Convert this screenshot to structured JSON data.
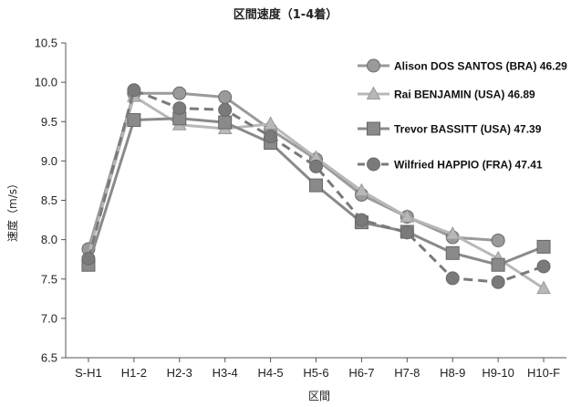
{
  "chart_data": {
    "type": "line",
    "title": "区間速度（1-4着）",
    "xlabel": "区間",
    "ylabel": "速度（m/s）",
    "ylim": [
      6.5,
      10.5
    ],
    "yticks": [
      "6.5",
      "7.0",
      "7.5",
      "8.0",
      "8.5",
      "9.0",
      "9.5",
      "10.0",
      "10.5"
    ],
    "categories": [
      "S-H1",
      "H1-2",
      "H2-3",
      "H3-4",
      "H4-5",
      "H5-6",
      "H6-7",
      "H7-8",
      "H8-9",
      "H9-10",
      "H10-F"
    ],
    "grid": false,
    "legend_position": "top-right",
    "series": [
      {
        "name": "Alison DOS SANTOS (BRA) 46.29",
        "marker": "circle",
        "color": "#9a9a9a",
        "dash": "solid",
        "values": [
          7.88,
          9.86,
          9.86,
          9.81,
          9.4,
          9.02,
          8.57,
          8.29,
          8.03,
          7.99,
          null
        ]
      },
      {
        "name": "Rai BENJAMIN (USA) 46.89",
        "marker": "triangle",
        "color": "#b8b8b8",
        "dash": "solid",
        "values": [
          7.8,
          9.82,
          9.46,
          9.41,
          9.47,
          9.04,
          8.62,
          8.29,
          8.07,
          7.76,
          7.38
        ]
      },
      {
        "name": "Trevor BASSITT (USA) 47.39",
        "marker": "square",
        "color": "#8a8a8a",
        "dash": "solid",
        "values": [
          7.68,
          9.52,
          9.54,
          9.49,
          9.23,
          8.69,
          8.22,
          8.1,
          7.83,
          7.68,
          7.91
        ]
      },
      {
        "name": "Wilfried HAPPIO (FRA) 47.41",
        "marker": "circle",
        "color": "#7a7a7a",
        "dash": "dashed",
        "values": [
          7.76,
          9.9,
          9.67,
          9.65,
          9.31,
          8.93,
          8.25,
          8.09,
          7.51,
          7.46,
          7.66
        ]
      }
    ]
  }
}
